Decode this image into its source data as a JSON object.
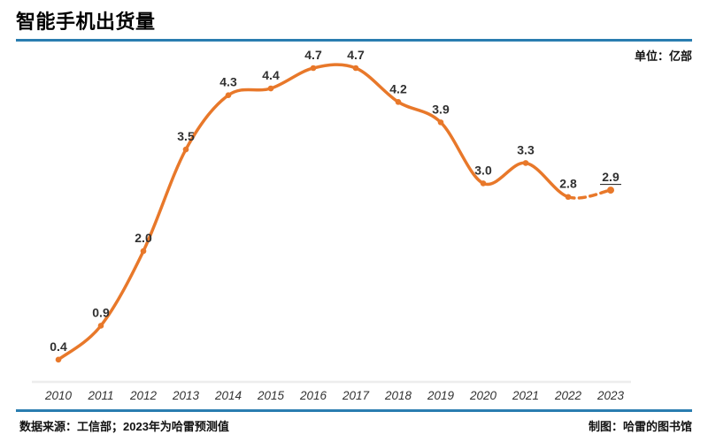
{
  "header": {
    "title": "智能手机出货量",
    "unit_label": "单位：亿部"
  },
  "chart_data": {
    "type": "line",
    "title": "智能手机出货量",
    "unit": "亿部",
    "categories": [
      "2010",
      "2011",
      "2012",
      "2013",
      "2014",
      "2015",
      "2016",
      "2017",
      "2018",
      "2019",
      "2020",
      "2021",
      "2022",
      "2023"
    ],
    "series": [
      {
        "name": "智能手机出货量",
        "values": [
          0.4,
          0.9,
          2.0,
          3.5,
          4.3,
          4.4,
          4.7,
          4.7,
          4.2,
          3.9,
          3.0,
          3.3,
          2.8,
          2.9
        ]
      }
    ],
    "xlabel": "",
    "ylabel": "亿部",
    "ylim": [
      0,
      5
    ],
    "grid": false,
    "legend": "none",
    "line_color": "#E8782A",
    "forecast": {
      "index": 13,
      "category": "2023",
      "value": 2.9,
      "dashed_last_segment": true,
      "underline_label": true
    }
  },
  "footer": {
    "source": "数据来源：工信部；2023年为哈雷预测值",
    "credit": "制图：哈雷的图书馆"
  },
  "colors": {
    "accent_blue": "#2A7DB0",
    "line_orange": "#E8782A",
    "axis_gray": "#EDEDED",
    "label_dark": "#303030"
  }
}
